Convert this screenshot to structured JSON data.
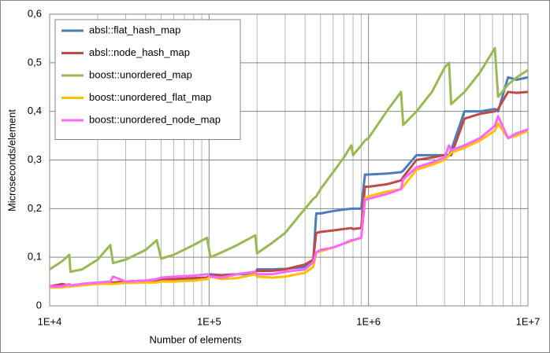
{
  "chart_data": {
    "type": "line",
    "xlabel": "Number of elements",
    "ylabel": "Microseconds/element",
    "xscale": "log",
    "grid": true,
    "legend": "upper left",
    "xlim": [
      10000,
      10000000
    ],
    "ylim": [
      0,
      0.6
    ],
    "xticks": [
      {
        "value": 10000,
        "label": "1E+4"
      },
      {
        "value": 100000,
        "label": "1E+5"
      },
      {
        "value": 1000000,
        "label": "1E+6"
      },
      {
        "value": 10000000,
        "label": "1E+7"
      }
    ],
    "xminorticks": [
      20000,
      30000,
      40000,
      50000,
      60000,
      70000,
      80000,
      90000,
      200000,
      300000,
      400000,
      500000,
      600000,
      700000,
      800000,
      900000,
      2000000,
      3000000,
      4000000,
      5000000,
      6000000,
      7000000,
      8000000,
      9000000
    ],
    "yticks": [
      0,
      {
        "value": 0.1,
        "label": "0,1"
      },
      {
        "value": 0.2,
        "label": "0,2"
      },
      {
        "value": 0.3,
        "label": "0,3"
      },
      {
        "value": 0.4,
        "label": "0,4"
      },
      {
        "value": 0.5,
        "label": "0,5"
      },
      {
        "value": 0.6,
        "label": "0,6"
      }
    ],
    "x": [
      10000,
      12000,
      13300,
      13500,
      16000,
      20000,
      24000,
      25000,
      30000,
      40000,
      47000,
      50000,
      60000,
      80000,
      97000,
      102000,
      120000,
      150000,
      195000,
      200000,
      250000,
      300000,
      400000,
      450000,
      470000,
      500000,
      600000,
      700000,
      780000,
      800000,
      900000,
      950000,
      1000000,
      1300000,
      1600000,
      1650000,
      2000000,
      2500000,
      3000000,
      3200000,
      3300000,
      4000000,
      5000000,
      6200000,
      6500000,
      7500000,
      8500000,
      10000000
    ],
    "series": [
      {
        "name": "absl::flat_hash_map",
        "color": "#4a7ebb",
        "values": [
          0.04,
          0.042,
          0.04,
          0.04,
          0.045,
          0.048,
          0.048,
          0.048,
          0.05,
          0.052,
          0.052,
          0.055,
          0.055,
          0.057,
          0.058,
          0.065,
          0.063,
          0.065,
          0.065,
          0.075,
          0.075,
          0.076,
          0.08,
          0.09,
          0.19,
          0.19,
          0.195,
          0.198,
          0.2,
          0.2,
          0.2,
          0.27,
          0.27,
          0.272,
          0.275,
          0.278,
          0.31,
          0.31,
          0.31,
          0.31,
          0.32,
          0.4,
          0.4,
          0.405,
          0.4,
          0.47,
          0.465,
          0.47
        ]
      },
      {
        "name": "absl::node_hash_map",
        "color": "#be4b48",
        "values": [
          0.04,
          0.045,
          0.042,
          0.04,
          0.045,
          0.047,
          0.048,
          0.048,
          0.05,
          0.052,
          0.052,
          0.055,
          0.055,
          0.057,
          0.058,
          0.062,
          0.063,
          0.065,
          0.07,
          0.072,
          0.072,
          0.075,
          0.085,
          0.095,
          0.15,
          0.152,
          0.155,
          0.158,
          0.16,
          0.158,
          0.16,
          0.245,
          0.245,
          0.25,
          0.258,
          0.265,
          0.3,
          0.305,
          0.31,
          0.31,
          0.31,
          0.385,
          0.395,
          0.4,
          0.405,
          0.44,
          0.438,
          0.44
        ]
      },
      {
        "name": "boost::unordered_map",
        "color": "#98b954",
        "values": [
          0.075,
          0.092,
          0.105,
          0.07,
          0.075,
          0.095,
          0.125,
          0.088,
          0.095,
          0.115,
          0.135,
          0.097,
          0.105,
          0.125,
          0.14,
          0.1,
          0.11,
          0.125,
          0.145,
          0.108,
          0.13,
          0.15,
          0.2,
          0.22,
          0.225,
          0.24,
          0.275,
          0.305,
          0.33,
          0.31,
          0.33,
          0.34,
          0.345,
          0.4,
          0.44,
          0.372,
          0.4,
          0.44,
          0.49,
          0.5,
          0.415,
          0.44,
          0.48,
          0.53,
          0.43,
          0.455,
          0.47,
          0.485
        ]
      },
      {
        "name": "boost::unordered_flat_map",
        "color": "#ffc000",
        "values": [
          0.038,
          0.038,
          0.04,
          0.04,
          0.042,
          0.045,
          0.045,
          0.045,
          0.047,
          0.048,
          0.048,
          0.05,
          0.05,
          0.052,
          0.055,
          0.06,
          0.055,
          0.057,
          0.065,
          0.06,
          0.058,
          0.06,
          0.068,
          0.08,
          0.11,
          0.112,
          0.12,
          0.128,
          0.133,
          0.135,
          0.14,
          0.22,
          0.225,
          0.235,
          0.24,
          0.245,
          0.28,
          0.29,
          0.3,
          0.31,
          0.315,
          0.325,
          0.34,
          0.36,
          0.375,
          0.345,
          0.35,
          0.36
        ]
      },
      {
        "name": "boost::unordered_node_map",
        "color": "#ff66ff",
        "values": [
          0.04,
          0.04,
          0.045,
          0.042,
          0.045,
          0.048,
          0.05,
          0.06,
          0.05,
          0.052,
          0.055,
          0.058,
          0.06,
          0.062,
          0.065,
          0.06,
          0.058,
          0.065,
          0.07,
          0.065,
          0.065,
          0.07,
          0.075,
          0.09,
          0.11,
          0.115,
          0.12,
          0.128,
          0.135,
          0.135,
          0.14,
          0.218,
          0.22,
          0.23,
          0.24,
          0.26,
          0.285,
          0.295,
          0.305,
          0.33,
          0.32,
          0.33,
          0.345,
          0.37,
          0.39,
          0.345,
          0.355,
          0.363
        ]
      }
    ]
  }
}
